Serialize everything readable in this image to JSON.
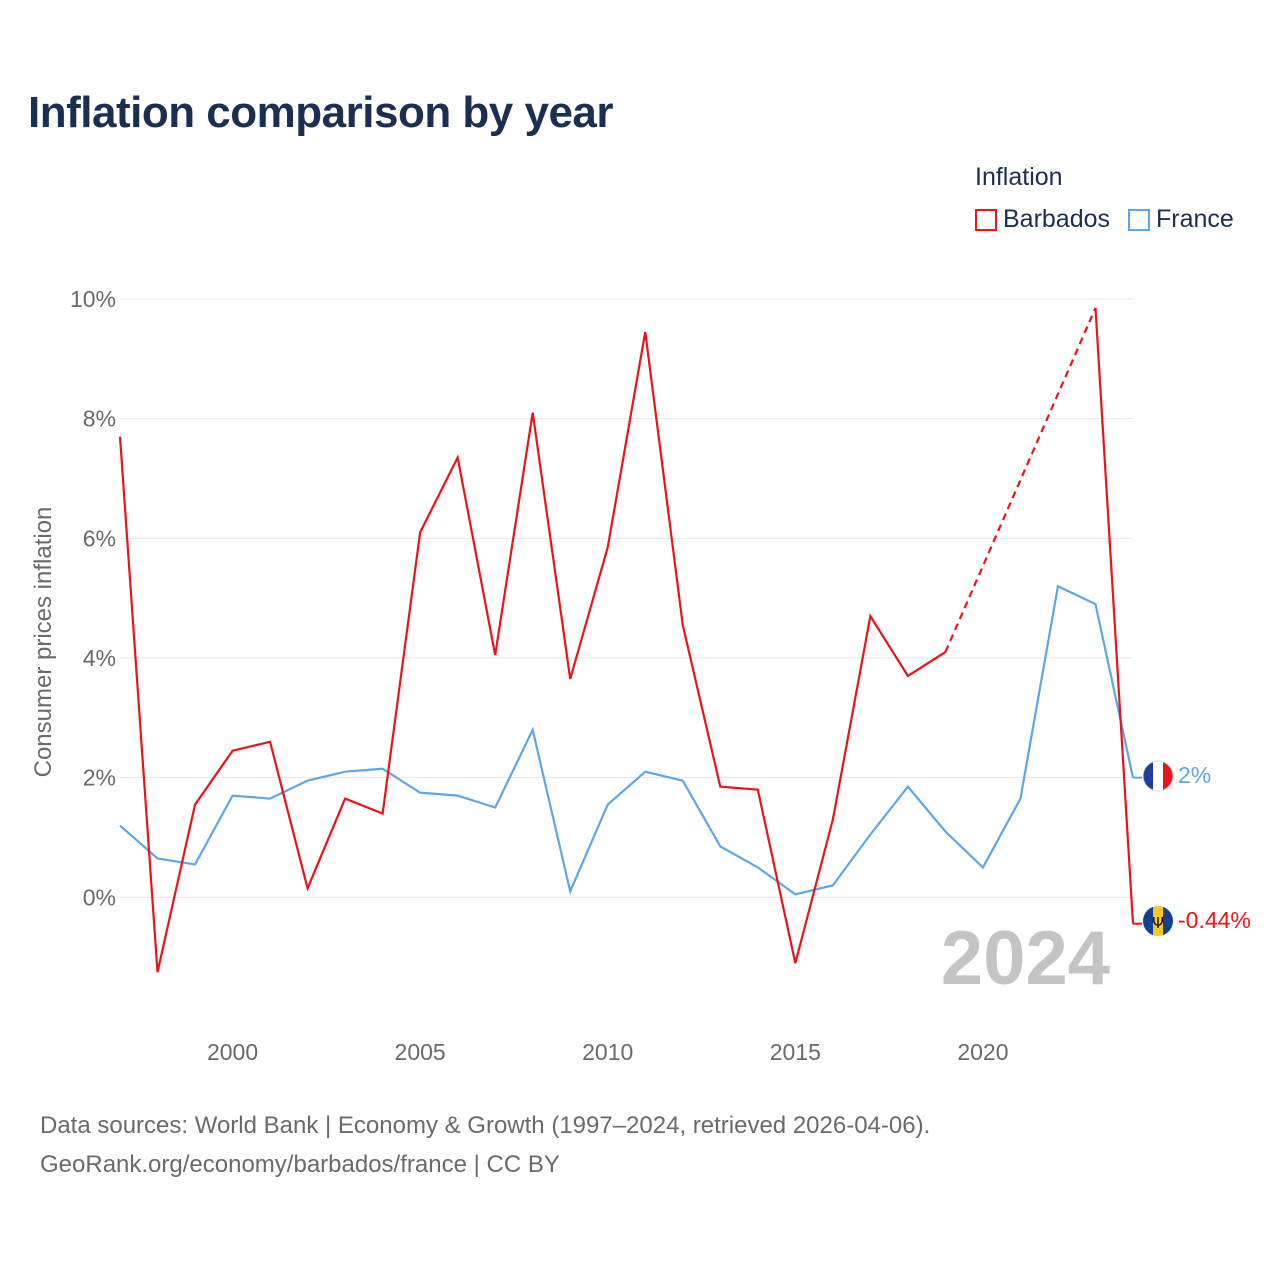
{
  "title": "Inflation comparison by year",
  "legend": {
    "title": "Inflation",
    "items": [
      {
        "label": "Barbados",
        "color": "#e8141b"
      },
      {
        "label": "France",
        "color": "#5fa6e2"
      }
    ]
  },
  "year_watermark": "2024",
  "end_labels": {
    "france": "2%",
    "barbados": "-0.44%"
  },
  "footer": {
    "line1": "Data sources: World Bank | Economy & Growth (1997–2024, retrieved 2026-04-06).",
    "line2": "GeoRank.org/economy/barbados/france | CC BY"
  },
  "chart_data": {
    "type": "line",
    "title": "Inflation comparison by year",
    "xlabel": "",
    "ylabel": "Consumer prices inflation",
    "xlim": [
      1997,
      2024
    ],
    "ylim": [
      -2,
      10
    ],
    "yticks": [
      0,
      2,
      4,
      6,
      8,
      10
    ],
    "ytick_labels": [
      "0%",
      "2%",
      "4%",
      "6%",
      "8%",
      "10%"
    ],
    "xticks": [
      2000,
      2005,
      2010,
      2015,
      2020
    ],
    "xtick_labels": [
      "2000",
      "2005",
      "2010",
      "2015",
      "2020"
    ],
    "grid": true,
    "legend_position": "top-right",
    "series": [
      {
        "name": "Barbados",
        "color": "#e8141b",
        "x": [
          1997,
          1998,
          1999,
          2000,
          2001,
          2002,
          2003,
          2004,
          2005,
          2006,
          2007,
          2008,
          2009,
          2010,
          2011,
          2012,
          2013,
          2014,
          2015,
          2016,
          2017,
          2018,
          2019,
          2023,
          2024
        ],
        "values": [
          7.7,
          -1.25,
          1.55,
          2.45,
          2.6,
          0.15,
          1.65,
          1.4,
          6.1,
          7.35,
          4.05,
          8.1,
          3.65,
          5.85,
          9.45,
          4.55,
          1.85,
          1.8,
          -1.1,
          1.3,
          4.7,
          3.7,
          4.1,
          9.85,
          -0.44
        ],
        "gap_dashed": [
          2019,
          2023
        ]
      },
      {
        "name": "France",
        "color": "#5fa6e2",
        "x": [
          1997,
          1998,
          1999,
          2000,
          2001,
          2002,
          2003,
          2004,
          2005,
          2006,
          2007,
          2008,
          2009,
          2010,
          2011,
          2012,
          2013,
          2014,
          2015,
          2016,
          2017,
          2018,
          2019,
          2020,
          2021,
          2022,
          2023,
          2024
        ],
        "values": [
          1.2,
          0.65,
          0.55,
          1.7,
          1.65,
          1.95,
          2.1,
          2.15,
          1.75,
          1.7,
          1.5,
          2.8,
          0.1,
          1.55,
          2.1,
          1.95,
          0.85,
          0.5,
          0.05,
          0.2,
          1.05,
          1.85,
          1.1,
          0.5,
          1.65,
          5.2,
          4.9,
          2.0
        ]
      }
    ]
  }
}
